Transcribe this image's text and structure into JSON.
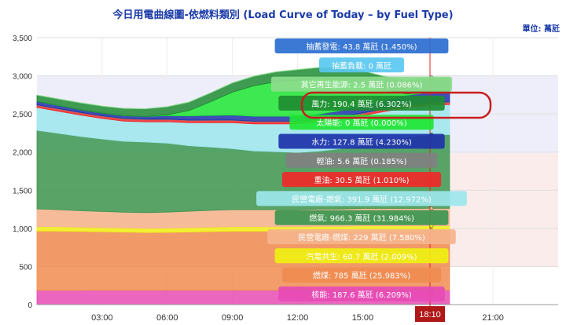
{
  "title": "今日用電曲線圖-依燃料類別 (Load Curve of Today – by Fuel Type)",
  "unit": "單位: 萬瓩",
  "colors": {
    "nuclear": "#e64bb4",
    "coal": "#f08c50",
    "cogen": "#f0f014",
    "ipp_coal": "#f5b48c",
    "lng": "#3c9650",
    "ipp_lng": "#9ce6ec",
    "oil": "#f02828",
    "diesel": "#808080",
    "hydro": "#1e32aa",
    "solar": "#1ee632",
    "wind": "#1e8c32",
    "other_renew": "#8cdc8c",
    "storage_load": "#5ac8f0",
    "storage_gen": "#2b6ed0"
  },
  "chart_data": {
    "type": "area",
    "stacked": true,
    "title": "今日用電曲線圖-依燃料類別 (Load Curve of Today – by Fuel Type)",
    "ylim": [
      0,
      3500
    ],
    "yticks": [
      "0",
      "500",
      "1,000",
      "1,500",
      "2,000",
      "2,500",
      "3,000",
      "3,500"
    ],
    "xticks": [
      "03:00",
      "06:00",
      "09:00",
      "12:00",
      "15:00",
      "21:00"
    ],
    "xlim_hours": [
      0,
      24
    ],
    "current_time": "18:10",
    "x": [
      0.0,
      1.0,
      2.0,
      3.0,
      4.0,
      5.0,
      6.0,
      7.0,
      8.0,
      9.0,
      10.0,
      11.0,
      12.0,
      13.0,
      14.0,
      15.0,
      16.0,
      17.0,
      18.17,
      19.0
    ],
    "series": [
      {
        "name": "核能",
        "key": "nuclear",
        "values": [
          185,
          185,
          185,
          186,
          186,
          186,
          187,
          187,
          187,
          187,
          187,
          187,
          187,
          187,
          187,
          187,
          187,
          187,
          187.6,
          187.6
        ]
      },
      {
        "name": "燃煤",
        "key": "coal",
        "values": [
          780,
          780,
          775,
          770,
          765,
          760,
          760,
          765,
          770,
          775,
          775,
          775,
          775,
          780,
          780,
          785,
          785,
          785,
          785,
          785
        ]
      },
      {
        "name": "汽電共生",
        "key": "cogen",
        "values": [
          55,
          55,
          55,
          55,
          55,
          55,
          56,
          57,
          58,
          58,
          58,
          58,
          58,
          59,
          59,
          60,
          60,
          60,
          60.7,
          60.7
        ]
      },
      {
        "name": "民營電廠-燃煤",
        "key": "ipp_coal",
        "values": [
          235,
          225,
          215,
          210,
          205,
          205,
          210,
          215,
          220,
          225,
          225,
          225,
          225,
          227,
          228,
          229,
          229,
          229,
          229,
          229
        ]
      },
      {
        "name": "燃氣",
        "key": "lng",
        "values": [
          1030,
          1000,
          975,
          950,
          930,
          925,
          905,
          860,
          830,
          800,
          770,
          760,
          750,
          760,
          790,
          830,
          880,
          930,
          966.3,
          966.3
        ]
      },
      {
        "name": "民營電廠-燃氣",
        "key": "ipp_lng",
        "values": [
          300,
          290,
          280,
          270,
          265,
          265,
          280,
          300,
          320,
          340,
          355,
          365,
          375,
          380,
          385,
          388,
          390,
          391,
          391.9,
          391.9
        ]
      },
      {
        "name": "重油",
        "key": "oil",
        "values": [
          30,
          30,
          30,
          30,
          30,
          30,
          30,
          30,
          30,
          30,
          30,
          30,
          30,
          30,
          30,
          30,
          30,
          30,
          30.5,
          30.5
        ]
      },
      {
        "name": "輕油",
        "key": "diesel",
        "values": [
          5,
          5,
          5,
          5,
          5,
          5,
          5,
          5,
          5,
          5,
          5,
          5,
          5,
          5,
          5,
          5,
          5,
          5,
          5.6,
          5.6
        ]
      },
      {
        "name": "水力",
        "key": "hydro",
        "values": [
          45,
          40,
          35,
          35,
          35,
          35,
          45,
          55,
          60,
          65,
          65,
          65,
          65,
          70,
          80,
          100,
          115,
          125,
          127.8,
          127.8
        ]
      },
      {
        "name": "太陽能",
        "key": "solar",
        "values": [
          0,
          0,
          0,
          0,
          0,
          0,
          10,
          70,
          180,
          300,
          400,
          450,
          470,
          460,
          400,
          280,
          130,
          20,
          0,
          0
        ]
      },
      {
        "name": "風力",
        "key": "wind",
        "values": [
          80,
          85,
          90,
          90,
          95,
          100,
          105,
          110,
          115,
          120,
          125,
          130,
          140,
          150,
          160,
          170,
          180,
          185,
          190.4,
          190.4
        ]
      },
      {
        "name": "其它再生能源",
        "key": "other_renew",
        "values": [
          3,
          3,
          3,
          3,
          3,
          3,
          3,
          3,
          3,
          3,
          3,
          3,
          3,
          3,
          3,
          3,
          3,
          3,
          2.5,
          2.5
        ]
      }
    ],
    "tooltip": [
      {
        "label": "抽蓄發電: 43.8 萬瓩 (1.450%)",
        "key": "storage_gen"
      },
      {
        "label": "抽蓄負載: 0 萬瓩",
        "key": "storage_load"
      },
      {
        "label": "其它再生能源: 2.5 萬瓩 (0.086%)",
        "key": "other_renew"
      },
      {
        "label": "風力: 190.4 萬瓩 (6.302%)",
        "key": "wind",
        "highlight": true
      },
      {
        "label": "太陽能: 0 萬瓩 (0.000%)",
        "key": "solar"
      },
      {
        "label": "水力: 127.8 萬瓩 (4.230%)",
        "key": "hydro"
      },
      {
        "label": "輕油: 5.6 萬瓩 (0.185%)",
        "key": "diesel"
      },
      {
        "label": "重油: 30.5 萬瓩 (1.010%)",
        "key": "oil"
      },
      {
        "label": "民營電廠-燃氣: 391.9 萬瓩 (12.972%)",
        "key": "ipp_lng"
      },
      {
        "label": "燃氣: 966.3 萬瓩 (31.984%)",
        "key": "lng"
      },
      {
        "label": "民營電廠-燃煤: 229 萬瓩 (7.580%)",
        "key": "ipp_coal"
      },
      {
        "label": "汽電共生: 60.7 萬瓩 (2.009%)",
        "key": "cogen"
      },
      {
        "label": "燃煤: 785 萬瓩 (25.983%)",
        "key": "coal"
      },
      {
        "label": "核能: 187.6 萬瓩 (6.209%)",
        "key": "nuclear"
      }
    ]
  }
}
